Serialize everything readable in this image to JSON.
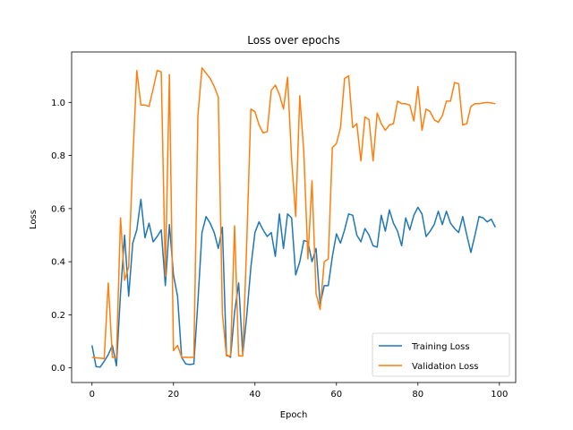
{
  "chart_data": {
    "type": "line",
    "title": "Loss over epochs",
    "xlabel": "Epoch",
    "ylabel": "Loss",
    "xlim": [
      -5,
      104
    ],
    "ylim": [
      -0.055,
      1.19
    ],
    "xticks": [
      0,
      20,
      40,
      60,
      80,
      100
    ],
    "yticks": [
      0.0,
      0.2,
      0.4,
      0.6,
      0.8,
      1.0
    ],
    "ytick_labels": [
      "0.0",
      "0.2",
      "0.4",
      "0.6",
      "0.8",
      "1.0"
    ],
    "legend_position": "lower right",
    "grid": false,
    "series": [
      {
        "name": "Training Loss",
        "color": "#1f77b4",
        "values": [
          0.085,
          0.005,
          0.003,
          0.025,
          0.05,
          0.085,
          0.008,
          0.28,
          0.5,
          0.27,
          0.47,
          0.52,
          0.635,
          0.49,
          0.545,
          0.475,
          0.495,
          0.52,
          0.31,
          0.54,
          0.35,
          0.27,
          0.04,
          0.015,
          0.013,
          0.015,
          0.25,
          0.51,
          0.57,
          0.545,
          0.51,
          0.45,
          0.53,
          0.05,
          0.04,
          0.21,
          0.32,
          0.05,
          0.2,
          0.38,
          0.51,
          0.55,
          0.52,
          0.495,
          0.51,
          0.42,
          0.58,
          0.45,
          0.58,
          0.565,
          0.35,
          0.4,
          0.48,
          0.475,
          0.4,
          0.45,
          0.24,
          0.31,
          0.31,
          0.42,
          0.505,
          0.47,
          0.52,
          0.58,
          0.575,
          0.5,
          0.475,
          0.525,
          0.5,
          0.46,
          0.455,
          0.575,
          0.515,
          0.595,
          0.545,
          0.515,
          0.46,
          0.565,
          0.52,
          0.575,
          0.605,
          0.58,
          0.495,
          0.515,
          0.54,
          0.59,
          0.54,
          0.59,
          0.545,
          0.525,
          0.51,
          0.57,
          0.5,
          0.435,
          0.5,
          0.57,
          0.565,
          0.55,
          0.56,
          0.53
        ]
      },
      {
        "name": "Validation Loss",
        "color": "#ff7f0e",
        "values": [
          0.04,
          0.038,
          0.037,
          0.035,
          0.32,
          0.04,
          0.04,
          0.565,
          0.33,
          0.38,
          0.78,
          1.12,
          0.99,
          0.99,
          0.985,
          1.05,
          1.12,
          1.115,
          0.345,
          1.105,
          0.065,
          0.085,
          0.04,
          0.04,
          0.04,
          0.04,
          0.95,
          1.13,
          1.11,
          1.09,
          1.06,
          1.02,
          0.205,
          0.045,
          0.045,
          0.535,
          0.045,
          0.045,
          0.48,
          0.975,
          0.965,
          0.915,
          0.885,
          0.89,
          1.045,
          1.065,
          1.03,
          0.975,
          1.095,
          0.785,
          0.57,
          1.025,
          0.81,
          0.41,
          0.705,
          0.28,
          0.22,
          0.4,
          0.41,
          0.83,
          0.845,
          0.905,
          1.09,
          1.1,
          0.905,
          0.92,
          0.78,
          0.945,
          0.935,
          0.78,
          0.96,
          0.92,
          0.895,
          0.915,
          0.92,
          1.005,
          0.995,
          0.995,
          0.99,
          0.93,
          1.06,
          0.895,
          0.975,
          0.965,
          0.935,
          0.925,
          0.95,
          1.005,
          1.005,
          1.075,
          1.07,
          0.915,
          0.92,
          0.985,
          0.995,
          0.995,
          0.998,
          1.0,
          0.998,
          0.995
        ]
      }
    ]
  }
}
